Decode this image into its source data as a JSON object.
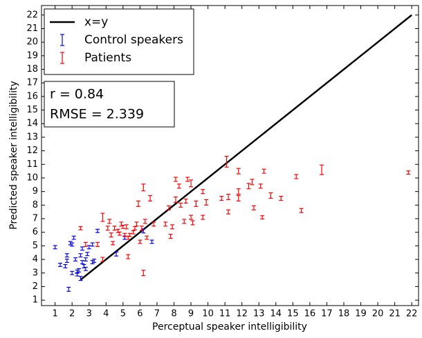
{
  "chart_data": {
    "type": "scatter",
    "xlabel": "Perceptual speaker intelligibility",
    "ylabel": "Predicted speaker intelligibility",
    "annotations": [
      "r = 0.84",
      "RMSE = 2.339"
    ],
    "xlim": [
      0.2,
      22.4
    ],
    "ylim": [
      0.6,
      22.7
    ],
    "xticks": [
      1,
      2,
      3,
      4,
      5,
      6,
      7,
      8,
      9,
      10,
      11,
      12,
      13,
      14,
      15,
      16,
      17,
      18,
      19,
      20,
      21,
      22
    ],
    "yticks": [
      1,
      2,
      3,
      4,
      5,
      6,
      7,
      8,
      9,
      10,
      11,
      12,
      13,
      14,
      15,
      16,
      17,
      18,
      19,
      20,
      21,
      22
    ],
    "grid": false,
    "legend": "upper left",
    "series": [
      {
        "name": "x=y",
        "color": "#000000",
        "kind": "line",
        "x": [
          2.5,
          22
        ],
        "values": [
          2.5,
          22
        ]
      },
      {
        "name": "Control speakers",
        "color": "#0000ff",
        "kind": "errorbar",
        "x": [
          1.0,
          1.3,
          1.7,
          1.7,
          1.8,
          1.9,
          2.0,
          2.1,
          2.2,
          2.3,
          2.3,
          2.4,
          2.5,
          2.5,
          2.6,
          2.6,
          2.7,
          2.8,
          2.8,
          2.9,
          3.0,
          3.2,
          3.2,
          3.3,
          3.5,
          4.6,
          5.1,
          6.2,
          6.7,
          1.6,
          2.0
        ],
        "values": [
          4.9,
          3.6,
          4.3,
          3.9,
          1.8,
          5.2,
          5.1,
          5.6,
          4.0,
          3.1,
          2.9,
          3.2,
          4.3,
          2.6,
          4.8,
          3.8,
          3.5,
          4.0,
          3.3,
          4.4,
          4.9,
          3.8,
          5.1,
          3.9,
          6.1,
          4.4,
          5.6,
          6.1,
          5.3,
          3.5,
          3.0
        ],
        "errors": [
          0.12,
          0.12,
          0.12,
          0.12,
          0.15,
          0.12,
          0.12,
          0.12,
          0.12,
          0.12,
          0.12,
          0.12,
          0.12,
          0.15,
          0.12,
          0.12,
          0.12,
          0.12,
          0.12,
          0.12,
          0.12,
          0.12,
          0.12,
          0.12,
          0.12,
          0.15,
          0.12,
          0.15,
          0.12,
          0.12,
          0.12
        ]
      },
      {
        "name": "Patients",
        "color": "#ff0000",
        "kind": "errorbar",
        "x": [
          2.5,
          2.8,
          3.5,
          3.8,
          3.8,
          4.1,
          4.2,
          4.3,
          4.4,
          4.5,
          4.7,
          4.8,
          4.9,
          5.0,
          5.1,
          5.2,
          5.3,
          5.3,
          5.4,
          5.6,
          5.7,
          5.8,
          5.9,
          6.0,
          6.1,
          6.2,
          6.2,
          6.3,
          6.4,
          6.6,
          6.8,
          7.5,
          7.7,
          7.8,
          7.9,
          8.1,
          8.1,
          8.3,
          8.4,
          8.6,
          8.7,
          8.8,
          9.0,
          9.0,
          9.1,
          9.3,
          9.7,
          9.7,
          9.9,
          10.8,
          11.1,
          11.2,
          11.2,
          11.8,
          11.8,
          11.8,
          12.4,
          12.6,
          12.7,
          13.1,
          13.2,
          13.3,
          13.7,
          14.3,
          15.2,
          15.5,
          16.7,
          21.8
        ],
        "values": [
          6.3,
          5.1,
          5.1,
          7.1,
          4.0,
          6.3,
          6.8,
          5.8,
          5.2,
          6.3,
          6.1,
          5.9,
          6.6,
          6.4,
          5.8,
          6.4,
          5.6,
          4.2,
          5.8,
          6.0,
          6.3,
          6.6,
          8.1,
          5.3,
          6.3,
          3.0,
          9.3,
          6.8,
          5.6,
          8.5,
          6.6,
          6.6,
          7.8,
          5.7,
          6.4,
          9.9,
          8.4,
          9.4,
          8.0,
          6.8,
          8.3,
          9.9,
          7.1,
          9.6,
          6.7,
          8.1,
          7.1,
          9.0,
          8.2,
          8.5,
          11.2,
          7.5,
          8.6,
          10.5,
          8.5,
          9.0,
          9.4,
          9.7,
          7.8,
          9.4,
          7.1,
          10.5,
          8.7,
          8.5,
          10.1,
          7.6,
          10.6,
          10.4
        ],
        "errors": [
          0.12,
          0.15,
          0.15,
          0.3,
          0.15,
          0.15,
          0.15,
          0.15,
          0.12,
          0.15,
          0.12,
          0.12,
          0.15,
          0.12,
          0.12,
          0.15,
          0.12,
          0.15,
          0.12,
          0.12,
          0.12,
          0.15,
          0.2,
          0.12,
          0.15,
          0.2,
          0.25,
          0.15,
          0.12,
          0.2,
          0.15,
          0.15,
          0.15,
          0.15,
          0.15,
          0.15,
          0.2,
          0.15,
          0.15,
          0.15,
          0.15,
          0.15,
          0.15,
          0.25,
          0.15,
          0.2,
          0.15,
          0.15,
          0.2,
          0.15,
          0.4,
          0.15,
          0.2,
          0.2,
          0.2,
          0.2,
          0.2,
          0.2,
          0.15,
          0.15,
          0.12,
          0.15,
          0.2,
          0.15,
          0.15,
          0.15,
          0.35,
          0.12
        ]
      }
    ]
  }
}
